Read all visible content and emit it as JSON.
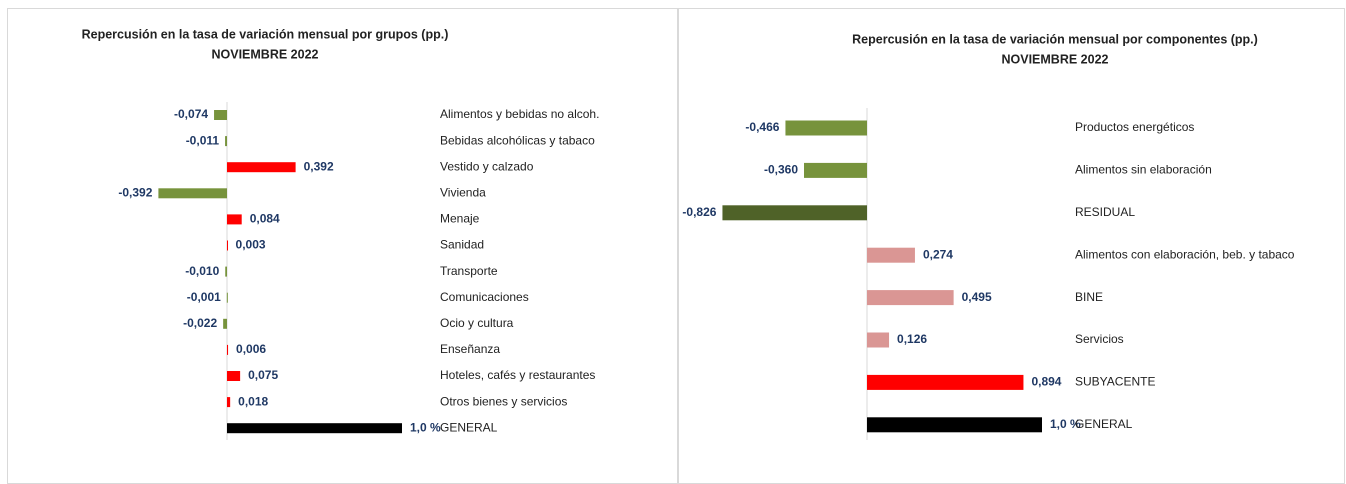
{
  "chart_data": [
    {
      "type": "bar",
      "orientation": "horizontal",
      "title": "Repercusión en la tasa de variación mensual por grupos (pp.)",
      "subtitle": "NOVIEMBRE 2022",
      "categories": [
        "Alimentos y bebidas no alcoh.",
        "Bebidas alcohólicas y tabaco",
        "Vestido y calzado",
        "Vivienda",
        "Menaje",
        "Sanidad",
        "Transporte",
        "Comunicaciones",
        "Ocio y cultura",
        "Enseñanza",
        "Hoteles, cafés y restaurantes",
        "Otros bienes y servicios",
        "GENERAL"
      ],
      "values": [
        -0.074,
        -0.011,
        0.392,
        -0.392,
        0.084,
        0.003,
        -0.01,
        -0.001,
        -0.022,
        0.006,
        0.075,
        0.018,
        1.0
      ],
      "value_labels": [
        "-0,074",
        "-0,011",
        "0,392",
        "-0,392",
        "0,084",
        "0,003",
        "-0,010",
        "-0,001",
        "-0,022",
        "0,006",
        "0,075",
        "0,018",
        "1,0 %"
      ],
      "colors": [
        "#77933c",
        "#77933c",
        "#ff0000",
        "#77933c",
        "#ff0000",
        "#ff0000",
        "#77933c",
        "#77933c",
        "#77933c",
        "#ff0000",
        "#ff0000",
        "#ff0000",
        "#000000"
      ]
    },
    {
      "type": "bar",
      "orientation": "horizontal",
      "title": "Repercusión en la tasa de variación mensual por componentes (pp.)",
      "subtitle": "NOVIEMBRE 2022",
      "categories": [
        "Productos energéticos",
        "Alimentos sin elaboración",
        "RESIDUAL",
        "Alimentos con elaboración, beb. y tabaco",
        "BINE",
        "Servicios",
        "SUBYACENTE",
        "GENERAL"
      ],
      "values": [
        -0.466,
        -0.36,
        -0.826,
        0.274,
        0.495,
        0.126,
        0.894,
        1.0
      ],
      "value_labels": [
        "-0,466",
        "-0,360",
        "-0,826",
        "0,274",
        "0,495",
        "0,126",
        "0,894",
        "1,0 %"
      ],
      "colors": [
        "#77933c",
        "#77933c",
        "#4f6228",
        "#da9694",
        "#da9694",
        "#da9694",
        "#ff0000",
        "#000000"
      ]
    }
  ]
}
